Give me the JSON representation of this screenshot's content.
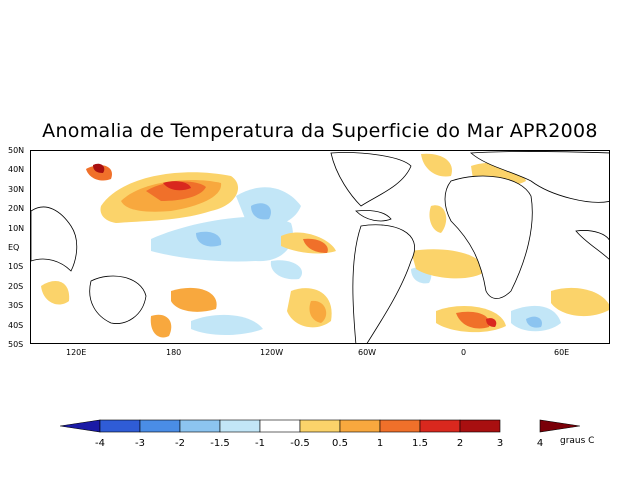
{
  "title": "Anomalia de Temperatura da Superficie do Mar APR2008",
  "axes": {
    "lat_labels": [
      "50N",
      "40N",
      "30N",
      "20N",
      "10N",
      "EQ",
      "10S",
      "20S",
      "30S",
      "40S",
      "50S"
    ],
    "lon_labels": [
      "120E",
      "180",
      "120W",
      "60W",
      "0",
      "60E"
    ]
  },
  "legend": {
    "labels": [
      "-4",
      "-3",
      "-2",
      "-1.5",
      "-1",
      "-0.5",
      "0.5",
      "1",
      "1.5",
      "2",
      "3",
      "4"
    ],
    "colors": [
      "#1a1aa6",
      "#2f5cd6",
      "#4a8de6",
      "#8cc4f0",
      "#c2e6f7",
      "#ffffff",
      "#fbd36a",
      "#f8a83e",
      "#f0702a",
      "#d9281e",
      "#a80f10",
      "#7a0008"
    ],
    "units": "graus C"
  }
}
